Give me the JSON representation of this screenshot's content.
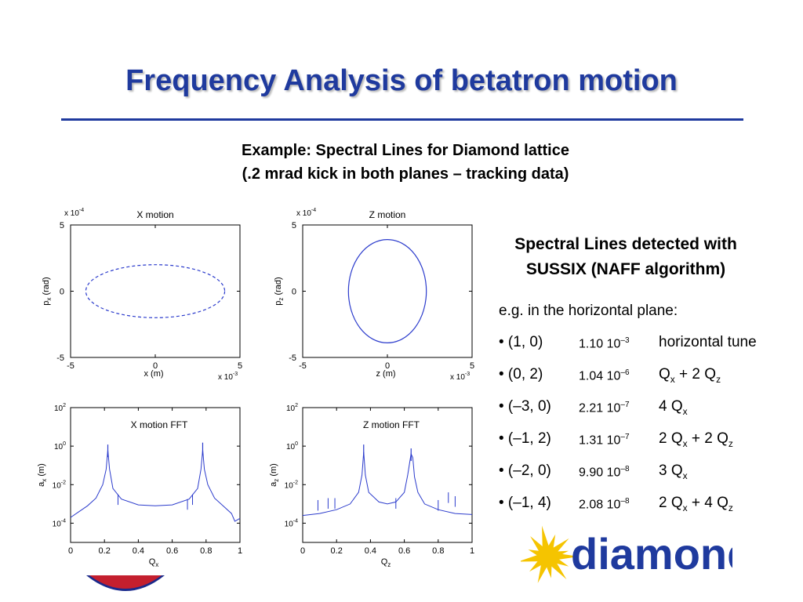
{
  "slide": {
    "title": "Frequency Analysis of betatron motion",
    "subtitle_line1": "Example: Spectral Lines for Diamond lattice",
    "subtitle_line2": "(.2 mrad kick in both planes – tracking data)"
  },
  "panel": {
    "title_line1": "Spectral Lines detected with",
    "title_line2": "SUSSIX (NAFF algorithm)",
    "intro": "e.g. in the horizontal plane:",
    "lines": [
      {
        "index": "• (1, 0)",
        "amp_mantissa": "1.10 10",
        "amp_exp": "–3",
        "desc": [
          {
            "t": "horizontal tune"
          }
        ]
      },
      {
        "index": "• (0, 2)",
        "amp_mantissa": "1.04 10",
        "amp_exp": "–6",
        "desc": [
          {
            "t": "Q"
          },
          {
            "sub": "x"
          },
          {
            "t": " + 2 Q"
          },
          {
            "sub": "z"
          }
        ]
      },
      {
        "index": "• (–3, 0)",
        "amp_mantissa": "2.21 10",
        "amp_exp": "–7",
        "desc": [
          {
            "t": "4 Q"
          },
          {
            "sub": "x"
          }
        ]
      },
      {
        "index": "• (–1, 2)",
        "amp_mantissa": "1.31 10",
        "amp_exp": "–7",
        "desc": [
          {
            "t": "2 Q"
          },
          {
            "sub": "x"
          },
          {
            "t": " + 2 Q"
          },
          {
            "sub": "z"
          }
        ]
      },
      {
        "index": "• (–2, 0)",
        "amp_mantissa": "9.90 10",
        "amp_exp": "–8",
        "desc": [
          {
            "t": "3 Q"
          },
          {
            "sub": "x"
          }
        ]
      },
      {
        "index": "• (–1, 4)",
        "amp_mantissa": "2.08 10",
        "amp_exp": "–8",
        "desc": [
          {
            "t": "2 Q"
          },
          {
            "sub": "x"
          },
          {
            "t": " + 4 Q"
          },
          {
            "sub": "z"
          }
        ]
      }
    ]
  },
  "logo": {
    "text": "diamond",
    "text_color": "#1f3a9e",
    "star_color": "#f5c400"
  },
  "colors": {
    "title": "#1f3a9e",
    "plot_line": "#2b3bcc"
  },
  "chart_data": [
    {
      "type": "scatter",
      "title": "X motion",
      "xlabel": "x (m)",
      "ylabel": "p_x (rad)",
      "x_multiplier": "x 10^-3",
      "y_multiplier": "x 10^-4",
      "xlim": [
        -5,
        5
      ],
      "ylim": [
        -5,
        5
      ],
      "xticks": [
        -5,
        0,
        5
      ],
      "yticks": [
        -5,
        0,
        5
      ],
      "ellipse": {
        "center": [
          0,
          0
        ],
        "semi_x": 4.1,
        "semi_y": 2.0
      },
      "style": "dashed"
    },
    {
      "type": "scatter",
      "title": "Z motion",
      "xlabel": "z (m)",
      "ylabel": "p_z (rad)",
      "x_multiplier": "x 10^-3",
      "y_multiplier": "x 10^-4",
      "xlim": [
        -5,
        5
      ],
      "ylim": [
        -5,
        5
      ],
      "xticks": [
        -5,
        0,
        5
      ],
      "yticks": [
        -5,
        0,
        5
      ],
      "ellipse": {
        "center": [
          0,
          0
        ],
        "semi_x": 2.3,
        "semi_y": 3.9
      },
      "style": "solid"
    },
    {
      "type": "line",
      "title": "X motion FFT",
      "xlabel": "Q_x",
      "ylabel": "a_x (m)",
      "yscale": "log",
      "xlim": [
        0,
        1
      ],
      "ylim_exp": [
        -5,
        2
      ],
      "xticks": [
        0,
        0.2,
        0.4,
        0.6,
        0.8,
        1
      ],
      "yticks_exp": [
        2,
        0,
        -2,
        -4
      ],
      "x": [
        0,
        0.05,
        0.1,
        0.15,
        0.19,
        0.21,
        0.22,
        0.23,
        0.25,
        0.3,
        0.4,
        0.5,
        0.6,
        0.7,
        0.75,
        0.77,
        0.78,
        0.79,
        0.81,
        0.85,
        0.9,
        0.95,
        0.97,
        1.0
      ],
      "y_exp": [
        -3.7,
        -3.4,
        -3.1,
        -2.7,
        -2.0,
        -1.2,
        -0.2,
        -1.2,
        -2.2,
        -2.75,
        -3.05,
        -3.1,
        -3.05,
        -2.75,
        -2.2,
        -1.2,
        -0.2,
        -1.2,
        -2.0,
        -2.7,
        -3.1,
        -3.5,
        -3.9,
        -3.75
      ],
      "peaks": [
        {
          "x": 0.22,
          "y_exp": 0.0
        },
        {
          "x": 0.78,
          "y_exp": 0.1
        }
      ],
      "spikes": [
        {
          "x": 0.28,
          "y_exp": -2.5
        },
        {
          "x": 0.69,
          "y_exp": -2.75
        },
        {
          "x": 0.72,
          "y_exp": -2.5
        }
      ]
    },
    {
      "type": "line",
      "title": "Z motion FFT",
      "xlabel": "Q_z",
      "ylabel": "a_z (m)",
      "yscale": "log",
      "xlim": [
        0,
        1
      ],
      "ylim_exp": [
        -5,
        2
      ],
      "xticks": [
        0,
        0.2,
        0.4,
        0.6,
        0.8,
        1
      ],
      "yticks_exp": [
        2,
        0,
        -2,
        -4
      ],
      "x": [
        0,
        0.1,
        0.2,
        0.28,
        0.33,
        0.35,
        0.36,
        0.37,
        0.39,
        0.45,
        0.5,
        0.55,
        0.6,
        0.62,
        0.64,
        0.65,
        0.66,
        0.68,
        0.72,
        0.8,
        0.9,
        1.0
      ],
      "y_exp": [
        -3.6,
        -3.5,
        -3.3,
        -3.0,
        -2.4,
        -1.5,
        -0.3,
        -1.5,
        -2.4,
        -2.9,
        -3.0,
        -2.9,
        -2.4,
        -1.5,
        -0.4,
        -0.6,
        -1.6,
        -2.4,
        -3.0,
        -3.3,
        -3.5,
        -3.55
      ],
      "peaks": [
        {
          "x": 0.36,
          "y_exp": 0.0
        },
        {
          "x": 0.64,
          "y_exp": -0.2
        }
      ],
      "spikes": [
        {
          "x": 0.09,
          "y_exp": -2.8
        },
        {
          "x": 0.15,
          "y_exp": -2.7
        },
        {
          "x": 0.19,
          "y_exp": -2.7
        },
        {
          "x": 0.55,
          "y_exp": -2.7
        },
        {
          "x": 0.8,
          "y_exp": -2.8
        },
        {
          "x": 0.86,
          "y_exp": -2.4
        },
        {
          "x": 0.9,
          "y_exp": -2.6
        }
      ]
    }
  ]
}
